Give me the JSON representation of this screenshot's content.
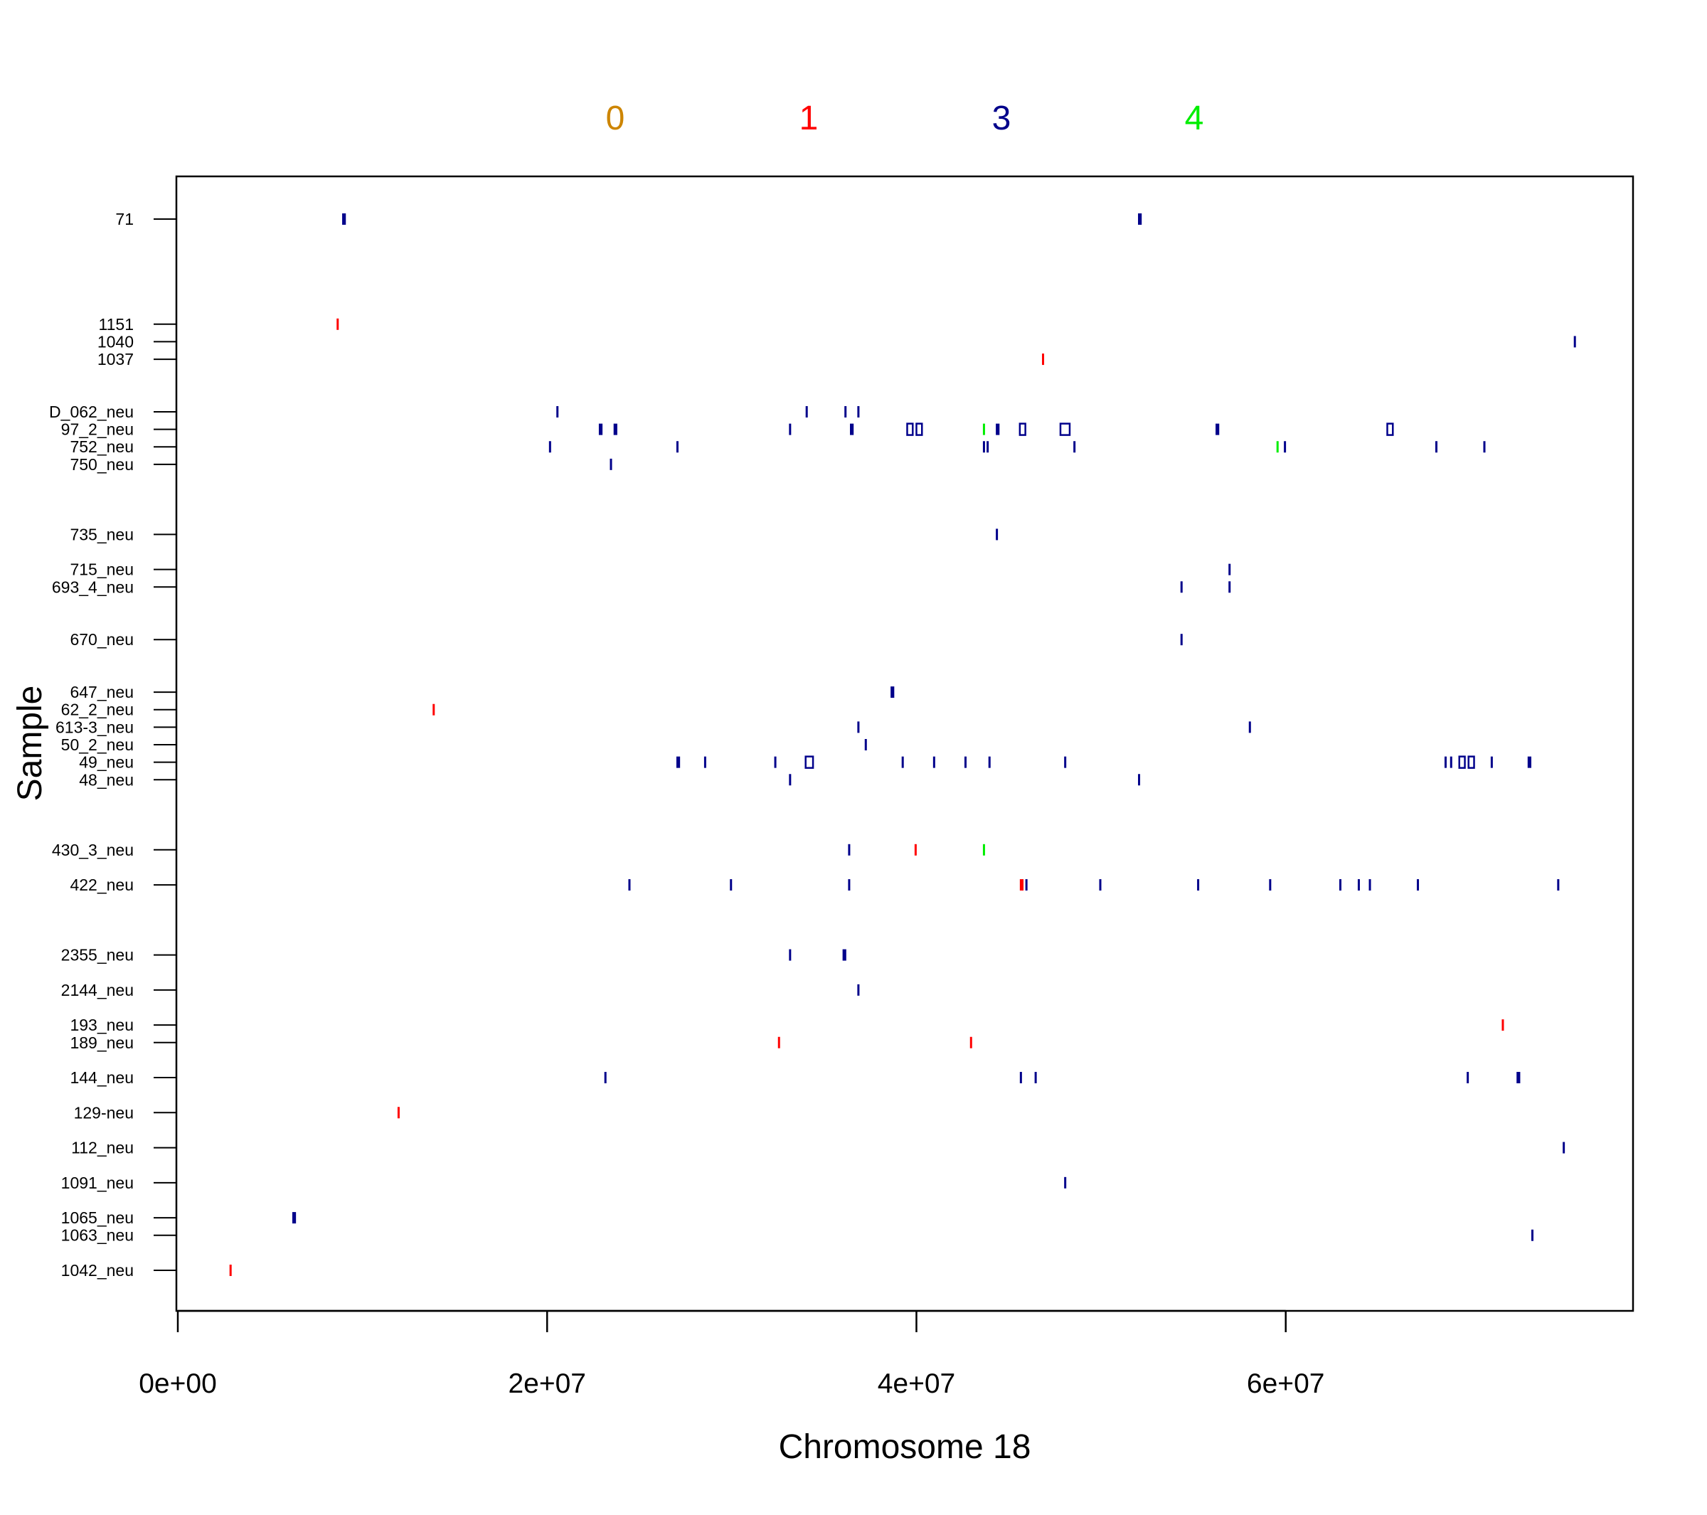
{
  "chart_data": {
    "type": "scatter",
    "title": "",
    "xlabel": "Chromosome 18",
    "ylabel": "Sample",
    "xlim": [
      0,
      78500000
    ],
    "x_ticks": [
      0,
      20000000,
      40000000,
      60000000
    ],
    "x_tick_labels": [
      "0e+00",
      "2e+07",
      "4e+07",
      "6e+07"
    ],
    "legend": {
      "placement": "top",
      "entries": [
        {
          "label": "0",
          "color": "#cd8500"
        },
        {
          "label": "1",
          "color": "#ff0000"
        },
        {
          "label": "3",
          "color": "#00008b"
        },
        {
          "label": "4",
          "color": "#00ee00"
        }
      ]
    },
    "samples": [
      {
        "label": "71",
        "row": 61
      },
      {
        "label": "1151",
        "row": 55
      },
      {
        "label": "1040",
        "row": 54
      },
      {
        "label": "1037",
        "row": 53
      },
      {
        "label": "D_062_neu",
        "row": 50
      },
      {
        "label": "97_2_neu",
        "row": 49
      },
      {
        "label": "752_neu",
        "row": 48
      },
      {
        "label": "750_neu",
        "row": 47
      },
      {
        "label": "735_neu",
        "row": 43
      },
      {
        "label": "715_neu",
        "row": 41
      },
      {
        "label": "693_4_neu",
        "row": 40
      },
      {
        "label": "670_neu",
        "row": 37
      },
      {
        "label": "647_neu",
        "row": 34
      },
      {
        "label": "62_2_neu",
        "row": 33
      },
      {
        "label": "613-3_neu",
        "row": 32
      },
      {
        "label": "50_2_neu",
        "row": 31
      },
      {
        "label": "49_neu",
        "row": 30
      },
      {
        "label": "48_neu",
        "row": 29
      },
      {
        "label": "430_3_neu",
        "row": 25
      },
      {
        "label": "422_neu",
        "row": 23
      },
      {
        "label": "2355_neu",
        "row": 19
      },
      {
        "label": "2144_neu",
        "row": 17
      },
      {
        "label": "193_neu",
        "row": 15
      },
      {
        "label": "189_neu",
        "row": 14
      },
      {
        "label": "144_neu",
        "row": 12
      },
      {
        "label": "129-neu",
        "row": 10
      },
      {
        "label": "112_neu",
        "row": 8
      },
      {
        "label": "1091_neu",
        "row": 6
      },
      {
        "label": "1065_neu",
        "row": 4
      },
      {
        "label": "1063_neu",
        "row": 3
      },
      {
        "label": "1042_neu",
        "row": 1
      }
    ],
    "row_range": [
      0,
      62
    ],
    "segment_colors": {
      "0": "#cd8500",
      "1": "#ff0000",
      "3": "#00008b",
      "4": "#00ee00"
    },
    "segments": [
      {
        "sample": "71",
        "start": 8900000,
        "end": 9100000,
        "state": 3
      },
      {
        "sample": "71",
        "start": 52000000,
        "end": 52200000,
        "state": 3
      },
      {
        "sample": "1151",
        "start": 8600000,
        "end": 8700000,
        "state": 1
      },
      {
        "sample": "1040",
        "start": 75600000,
        "end": 75700000,
        "state": 3
      },
      {
        "sample": "1037",
        "start": 46800000,
        "end": 46900000,
        "state": 1
      },
      {
        "sample": "D_062_neu",
        "start": 20500000,
        "end": 20600000,
        "state": 3
      },
      {
        "sample": "D_062_neu",
        "start": 34000000,
        "end": 34100000,
        "state": 3
      },
      {
        "sample": "D_062_neu",
        "start": 36100000,
        "end": 36200000,
        "state": 3
      },
      {
        "sample": "D_062_neu",
        "start": 36800000,
        "end": 36900000,
        "state": 3
      },
      {
        "sample": "97_2_neu",
        "start": 22800000,
        "end": 23000000,
        "state": 3
      },
      {
        "sample": "97_2_neu",
        "start": 23600000,
        "end": 23800000,
        "state": 3
      },
      {
        "sample": "97_2_neu",
        "start": 33100000,
        "end": 33200000,
        "state": 3
      },
      {
        "sample": "97_2_neu",
        "start": 36400000,
        "end": 36600000,
        "state": 3
      },
      {
        "sample": "97_2_neu",
        "start": 39500000,
        "end": 39800000,
        "state": 3
      },
      {
        "sample": "97_2_neu",
        "start": 40000000,
        "end": 40300000,
        "state": 3
      },
      {
        "sample": "97_2_neu",
        "start": 43600000,
        "end": 43700000,
        "state": 4
      },
      {
        "sample": "97_2_neu",
        "start": 44300000,
        "end": 44500000,
        "state": 3
      },
      {
        "sample": "97_2_neu",
        "start": 45600000,
        "end": 45900000,
        "state": 3
      },
      {
        "sample": "97_2_neu",
        "start": 47800000,
        "end": 48300000,
        "state": 3
      },
      {
        "sample": "97_2_neu",
        "start": 56200000,
        "end": 56400000,
        "state": 3
      },
      {
        "sample": "97_2_neu",
        "start": 65500000,
        "end": 65800000,
        "state": 3
      },
      {
        "sample": "752_neu",
        "start": 20100000,
        "end": 20200000,
        "state": 3
      },
      {
        "sample": "752_neu",
        "start": 27000000,
        "end": 27100000,
        "state": 3
      },
      {
        "sample": "752_neu",
        "start": 43600000,
        "end": 43700000,
        "state": 3
      },
      {
        "sample": "752_neu",
        "start": 43800000,
        "end": 43900000,
        "state": 3
      },
      {
        "sample": "752_neu",
        "start": 48500000,
        "end": 48600000,
        "state": 3
      },
      {
        "sample": "752_neu",
        "start": 59500000,
        "end": 59600000,
        "state": 4
      },
      {
        "sample": "752_neu",
        "start": 59900000,
        "end": 60000000,
        "state": 3
      },
      {
        "sample": "752_neu",
        "start": 68100000,
        "end": 68200000,
        "state": 3
      },
      {
        "sample": "752_neu",
        "start": 70700000,
        "end": 70800000,
        "state": 3
      },
      {
        "sample": "750_neu",
        "start": 23400000,
        "end": 23500000,
        "state": 3
      },
      {
        "sample": "735_neu",
        "start": 44300000,
        "end": 44400000,
        "state": 3
      },
      {
        "sample": "715_neu",
        "start": 56900000,
        "end": 57000000,
        "state": 3
      },
      {
        "sample": "693_4_neu",
        "start": 54300000,
        "end": 54400000,
        "state": 3
      },
      {
        "sample": "693_4_neu",
        "start": 56900000,
        "end": 57000000,
        "state": 3
      },
      {
        "sample": "670_neu",
        "start": 54300000,
        "end": 54400000,
        "state": 3
      },
      {
        "sample": "647_neu",
        "start": 38600000,
        "end": 38800000,
        "state": 3
      },
      {
        "sample": "62_2_neu",
        "start": 13800000,
        "end": 13900000,
        "state": 1
      },
      {
        "sample": "613-3_neu",
        "start": 36800000,
        "end": 36900000,
        "state": 3
      },
      {
        "sample": "613-3_neu",
        "start": 58000000,
        "end": 58100000,
        "state": 3
      },
      {
        "sample": "50_2_neu",
        "start": 37200000,
        "end": 37300000,
        "state": 3
      },
      {
        "sample": "49_neu",
        "start": 27000000,
        "end": 27200000,
        "state": 3
      },
      {
        "sample": "49_neu",
        "start": 28500000,
        "end": 28600000,
        "state": 3
      },
      {
        "sample": "49_neu",
        "start": 32300000,
        "end": 32400000,
        "state": 3
      },
      {
        "sample": "49_neu",
        "start": 34000000,
        "end": 34400000,
        "state": 3
      },
      {
        "sample": "49_neu",
        "start": 39200000,
        "end": 39300000,
        "state": 3
      },
      {
        "sample": "49_neu",
        "start": 40900000,
        "end": 41000000,
        "state": 3
      },
      {
        "sample": "49_neu",
        "start": 42600000,
        "end": 42700000,
        "state": 3
      },
      {
        "sample": "49_neu",
        "start": 43900000,
        "end": 44000000,
        "state": 3
      },
      {
        "sample": "49_neu",
        "start": 48000000,
        "end": 48100000,
        "state": 3
      },
      {
        "sample": "49_neu",
        "start": 68600000,
        "end": 68700000,
        "state": 3
      },
      {
        "sample": "49_neu",
        "start": 68900000,
        "end": 69000000,
        "state": 3
      },
      {
        "sample": "49_neu",
        "start": 69400000,
        "end": 69700000,
        "state": 3
      },
      {
        "sample": "49_neu",
        "start": 69900000,
        "end": 70200000,
        "state": 3
      },
      {
        "sample": "49_neu",
        "start": 71100000,
        "end": 71200000,
        "state": 3
      },
      {
        "sample": "49_neu",
        "start": 73100000,
        "end": 73300000,
        "state": 3
      },
      {
        "sample": "48_neu",
        "start": 33100000,
        "end": 33200000,
        "state": 3
      },
      {
        "sample": "48_neu",
        "start": 52000000,
        "end": 52100000,
        "state": 3
      },
      {
        "sample": "430_3_neu",
        "start": 36300000,
        "end": 36400000,
        "state": 3
      },
      {
        "sample": "430_3_neu",
        "start": 39900000,
        "end": 40000000,
        "state": 1
      },
      {
        "sample": "430_3_neu",
        "start": 43600000,
        "end": 43700000,
        "state": 4
      },
      {
        "sample": "422_neu",
        "start": 24400000,
        "end": 24500000,
        "state": 3
      },
      {
        "sample": "422_neu",
        "start": 29900000,
        "end": 30000000,
        "state": 3
      },
      {
        "sample": "422_neu",
        "start": 36300000,
        "end": 36400000,
        "state": 3
      },
      {
        "sample": "422_neu",
        "start": 45600000,
        "end": 45800000,
        "state": 1
      },
      {
        "sample": "422_neu",
        "start": 45900000,
        "end": 46000000,
        "state": 3
      },
      {
        "sample": "422_neu",
        "start": 49900000,
        "end": 50000000,
        "state": 3
      },
      {
        "sample": "422_neu",
        "start": 55200000,
        "end": 55300000,
        "state": 3
      },
      {
        "sample": "422_neu",
        "start": 59100000,
        "end": 59200000,
        "state": 3
      },
      {
        "sample": "422_neu",
        "start": 62900000,
        "end": 63000000,
        "state": 3
      },
      {
        "sample": "422_neu",
        "start": 63900000,
        "end": 64000000,
        "state": 3
      },
      {
        "sample": "422_neu",
        "start": 64500000,
        "end": 64600000,
        "state": 3
      },
      {
        "sample": "422_neu",
        "start": 67100000,
        "end": 67200000,
        "state": 3
      },
      {
        "sample": "422_neu",
        "start": 74700000,
        "end": 74800000,
        "state": 3
      },
      {
        "sample": "2355_neu",
        "start": 33100000,
        "end": 33200000,
        "state": 3
      },
      {
        "sample": "2355_neu",
        "start": 36000000,
        "end": 36200000,
        "state": 3
      },
      {
        "sample": "2144_neu",
        "start": 36800000,
        "end": 36900000,
        "state": 3
      },
      {
        "sample": "193_neu",
        "start": 71700000,
        "end": 71800000,
        "state": 1
      },
      {
        "sample": "189_neu",
        "start": 32500000,
        "end": 32600000,
        "state": 1
      },
      {
        "sample": "189_neu",
        "start": 42900000,
        "end": 43000000,
        "state": 1
      },
      {
        "sample": "144_neu",
        "start": 23100000,
        "end": 23200000,
        "state": 3
      },
      {
        "sample": "144_neu",
        "start": 45600000,
        "end": 45700000,
        "state": 3
      },
      {
        "sample": "144_neu",
        "start": 46400000,
        "end": 46500000,
        "state": 3
      },
      {
        "sample": "144_neu",
        "start": 69800000,
        "end": 69900000,
        "state": 3
      },
      {
        "sample": "144_neu",
        "start": 72500000,
        "end": 72700000,
        "state": 3
      },
      {
        "sample": "129-neu",
        "start": 11900000,
        "end": 12000000,
        "state": 1
      },
      {
        "sample": "112_neu",
        "start": 75000000,
        "end": 75100000,
        "state": 3
      },
      {
        "sample": "1091_neu",
        "start": 48000000,
        "end": 48100000,
        "state": 3
      },
      {
        "sample": "1065_neu",
        "start": 6200000,
        "end": 6400000,
        "state": 3
      },
      {
        "sample": "1063_neu",
        "start": 73300000,
        "end": 73400000,
        "state": 3
      },
      {
        "sample": "1042_neu",
        "start": 2800000,
        "end": 2900000,
        "state": 1
      }
    ]
  }
}
